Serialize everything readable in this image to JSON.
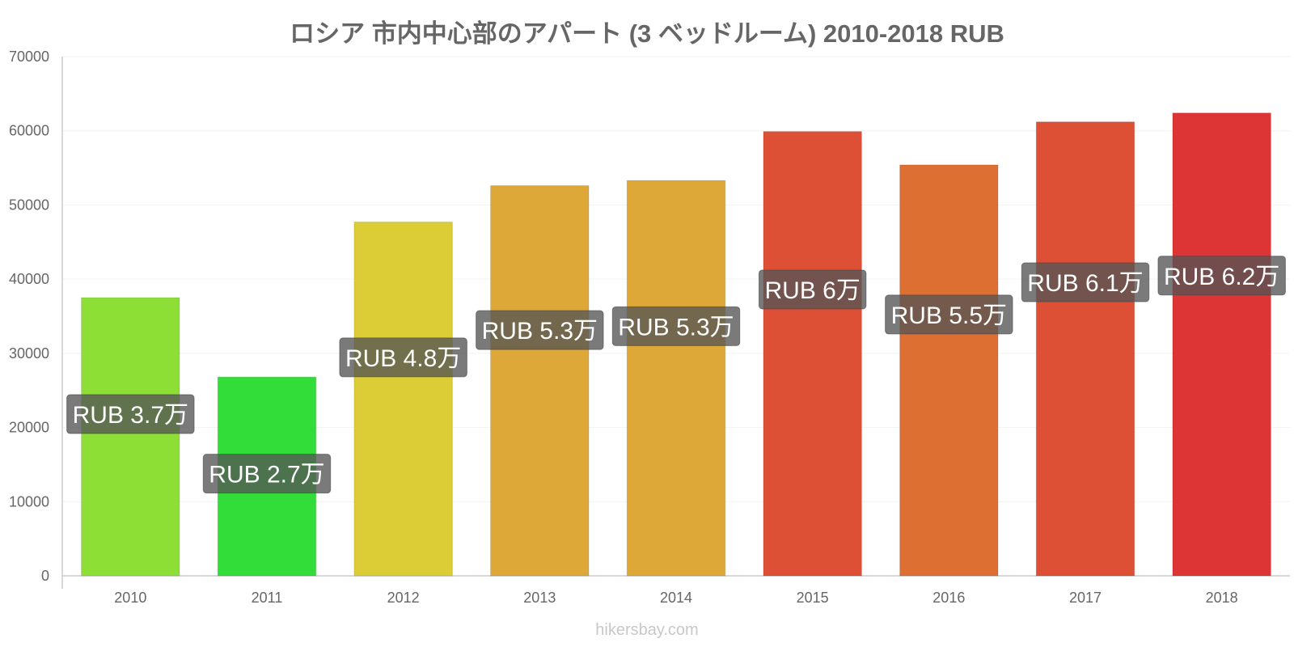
{
  "title": "ロシア 市内中心部のアパート (3 ベッドルーム) 2010-2018 RUB",
  "watermark": "hikersbay.com",
  "chart_data": {
    "type": "bar",
    "title": "ロシア 市内中心部のアパート (3 ベッドルーム) 2010-2018 RUB",
    "xlabel": "",
    "ylabel": "",
    "categories": [
      "2010",
      "2011",
      "2012",
      "2013",
      "2014",
      "2015",
      "2016",
      "2017",
      "2018"
    ],
    "values": [
      37500,
      26800,
      47700,
      52600,
      53300,
      59900,
      55400,
      61200,
      62400
    ],
    "data_labels": [
      "RUB 3.7万",
      "RUB 2.7万",
      "RUB 4.8万",
      "RUB 5.3万",
      "RUB 5.3万",
      "RUB 6万",
      "RUB 5.5万",
      "RUB 6.1万",
      "RUB 6.2万"
    ],
    "bar_colors": [
      "#8ddf36",
      "#33dd39",
      "#dccc35",
      "#dda837",
      "#dda837",
      "#dd5036",
      "#dd6f33",
      "#dd5035",
      "#dd3535"
    ],
    "yticks": [
      "0",
      "10000",
      "20000",
      "30000",
      "40000",
      "50000",
      "60000",
      "70000"
    ],
    "ylim": [
      0,
      70000
    ],
    "grid": true,
    "legend": "none"
  },
  "colors": {
    "label_box": "#555555",
    "axis": "#cccccc",
    "grid": "#f2f2f2",
    "text": "#666666"
  }
}
